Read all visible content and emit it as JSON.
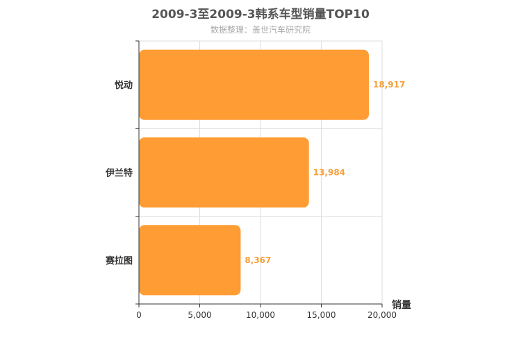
{
  "chart_data": {
    "type": "bar",
    "orientation": "horizontal",
    "title": "2009-3至2009-3韩系车型销量TOP10",
    "subtitle": "数据整理：盖世汽车研究院",
    "categories": [
      "悦动",
      "伊兰特",
      "赛拉图"
    ],
    "values": [
      18917,
      13984,
      8367
    ],
    "value_labels": [
      "18,917",
      "13,984",
      "8,367"
    ],
    "xlabel": "销量",
    "xlim": [
      0,
      20000
    ],
    "xticks": [
      0,
      5000,
      10000,
      15000,
      20000
    ],
    "xtick_labels": [
      "0",
      "5,000",
      "10,000",
      "15,000",
      "20,000"
    ],
    "grid": true,
    "colors": {
      "bar": "#ff9c33",
      "label": "#f5a03c",
      "grid": "#dddddd",
      "axis": "#333333"
    }
  }
}
